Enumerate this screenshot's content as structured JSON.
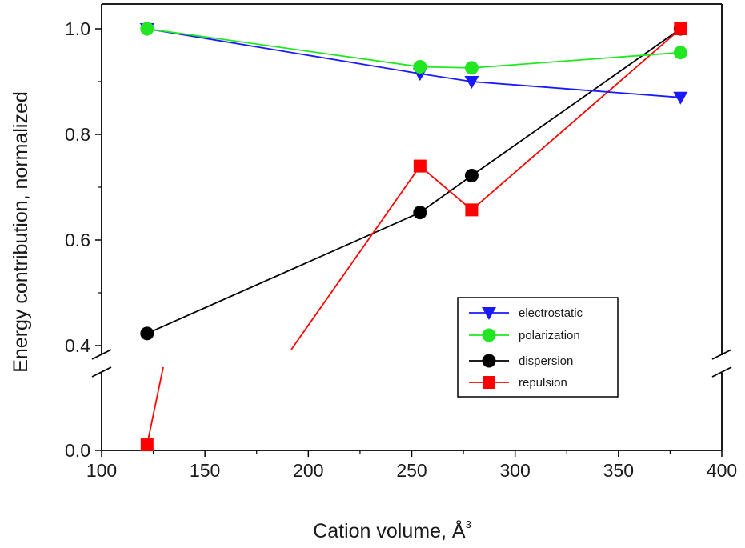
{
  "chart_data": {
    "type": "line",
    "title": "",
    "xlabel": "Cation volume, Å",
    "xlabel_superscript": "3",
    "ylabel": "Energy contribution, normalized",
    "xlim": [
      100,
      400
    ],
    "xticks": [
      "100",
      "150",
      "200",
      "250",
      "300",
      "350",
      "400"
    ],
    "ylim_lower": [
      0.0,
      0.3
    ],
    "ylim_upper": [
      0.38,
      1.05
    ],
    "axis_break": true,
    "yticks": [
      "0.0",
      "0.4",
      "0.6",
      "0.8",
      "1.0"
    ],
    "grid": false,
    "legend_position": "bottom-right",
    "series": [
      {
        "name": "electrostatic",
        "color": "#1a1aff",
        "marker": "triangle-down",
        "x": [
          122,
          254,
          279,
          380
        ],
        "y": [
          1.0,
          0.915,
          0.9,
          0.87
        ]
      },
      {
        "name": "polarization",
        "color": "#22e622",
        "marker": "circle",
        "x": [
          122,
          254,
          279,
          380
        ],
        "y": [
          1.0,
          0.928,
          0.926,
          0.955
        ]
      },
      {
        "name": "dispersion",
        "color": "#000000",
        "marker": "circle",
        "x": [
          122,
          254,
          279,
          380
        ],
        "y": [
          0.423,
          0.652,
          0.722,
          1.0
        ]
      },
      {
        "name": "repulsion",
        "color": "#ff0000",
        "marker": "square",
        "x": [
          122,
          254,
          279,
          380
        ],
        "y": [
          0.02,
          0.74,
          0.657,
          1.0
        ]
      }
    ]
  }
}
